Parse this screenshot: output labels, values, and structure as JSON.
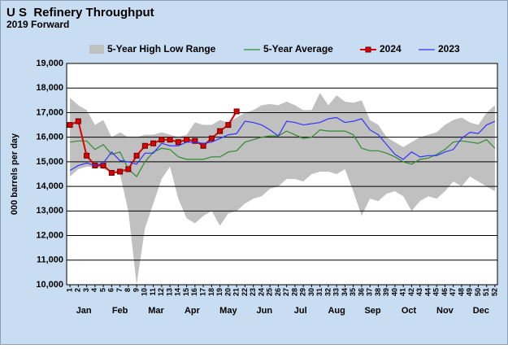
{
  "chart_data": {
    "type": "line",
    "title": "U S  Refinery Throughput",
    "subtitle": "2019 Forward",
    "y_label": "000 barrels per day",
    "x": [
      1,
      2,
      3,
      4,
      5,
      6,
      7,
      8,
      9,
      10,
      11,
      12,
      13,
      14,
      15,
      16,
      17,
      18,
      19,
      20,
      21,
      22,
      23,
      24,
      25,
      26,
      27,
      28,
      29,
      30,
      31,
      32,
      33,
      34,
      35,
      36,
      37,
      38,
      39,
      40,
      41,
      42,
      43,
      44,
      45,
      46,
      47,
      48,
      49,
      50,
      51,
      52
    ],
    "xlim": [
      0.6,
      52.3
    ],
    "xticks": [
      1,
      2,
      3,
      4,
      5,
      6,
      7,
      8,
      9,
      10,
      11,
      12,
      13,
      14,
      15,
      16,
      17,
      18,
      19,
      20,
      21,
      22,
      23,
      24,
      25,
      26,
      27,
      28,
      29,
      30,
      31,
      32,
      33,
      34,
      35,
      36,
      37,
      38,
      39,
      40,
      41,
      42,
      43,
      44,
      45,
      46,
      47,
      48,
      49,
      50,
      51,
      52
    ],
    "month_labels": [
      "Jan",
      "Feb",
      "Mar",
      "Apr",
      "May",
      "Jun",
      "Jul",
      "Aug",
      "Sep",
      "Oct",
      "Nov",
      "Dec"
    ],
    "ylim": [
      10000,
      19000
    ],
    "yticks": [
      {
        "value": 10000,
        "label": "10,000"
      },
      {
        "value": 11000,
        "label": "11,000"
      },
      {
        "value": 12000,
        "label": "12,000"
      },
      {
        "value": 13000,
        "label": "13,000"
      },
      {
        "value": 14000,
        "label": "14,000"
      },
      {
        "value": 15000,
        "label": "15,000"
      },
      {
        "value": 16000,
        "label": "16,000"
      },
      {
        "value": 17000,
        "label": "17,000"
      },
      {
        "value": 18000,
        "label": "18,000"
      },
      {
        "value": 19000,
        "label": "19,000"
      }
    ],
    "grid": true,
    "range": {
      "name": "5-Year High Low Range",
      "color": "#c0c0c0",
      "high": [
        17600,
        17300,
        17100,
        16500,
        16700,
        16000,
        16200,
        16000,
        16000,
        16100,
        16100,
        16200,
        16100,
        16000,
        16100,
        16600,
        16500,
        16500,
        16700,
        16600,
        16800,
        17000,
        17100,
        17300,
        17350,
        17300,
        17450,
        17300,
        17100,
        17100,
        17800,
        17300,
        17700,
        17450,
        17400,
        17500,
        16700,
        16500,
        16000,
        15800,
        15600,
        15800,
        16000,
        16100,
        16200,
        16500,
        16700,
        16800,
        16600,
        16500,
        17000,
        17300
      ],
      "low": [
        14400,
        14700,
        14800,
        14800,
        14700,
        14600,
        14500,
        13000,
        10000,
        12300,
        13300,
        14300,
        14800,
        13500,
        12700,
        12500,
        12800,
        13000,
        12400,
        12900,
        13000,
        13300,
        13500,
        13600,
        13900,
        14000,
        14300,
        14300,
        14200,
        14500,
        14600,
        14600,
        14500,
        14700,
        13800,
        12800,
        13500,
        13400,
        13700,
        13800,
        13600,
        13000,
        13400,
        13600,
        13500,
        13800,
        14200,
        14000,
        14400,
        14200,
        14000,
        13800
      ]
    },
    "series": [
      {
        "name": "5-Year Average",
        "color": "#2e8b2e",
        "markers": false,
        "values": [
          15800,
          15850,
          15850,
          15500,
          15700,
          15300,
          15400,
          14700,
          14400,
          15000,
          15400,
          15550,
          15500,
          15200,
          15100,
          15100,
          15100,
          15200,
          15200,
          15400,
          15450,
          15800,
          15900,
          16000,
          16050,
          16050,
          16250,
          16100,
          15950,
          16000,
          16300,
          16250,
          16250,
          16250,
          16100,
          15550,
          15450,
          15450,
          15350,
          15200,
          15000,
          14900,
          15100,
          15150,
          15300,
          15500,
          15800,
          15850,
          15800,
          15750,
          15900,
          15550
        ]
      },
      {
        "name": "2024",
        "color": "#dd0000",
        "markers": true,
        "values": [
          16500,
          16650,
          15250,
          14850,
          14850,
          14550,
          14600,
          14700,
          15250,
          15650,
          15750,
          15900,
          15900,
          15800,
          15900,
          15850,
          15650,
          15950,
          16250,
          16500,
          17050,
          null,
          null,
          null,
          null,
          null,
          null,
          null,
          null,
          null,
          null,
          null,
          null,
          null,
          null,
          null,
          null,
          null,
          null,
          null,
          null,
          null,
          null,
          null,
          null,
          null,
          null,
          null,
          null,
          null,
          null,
          null
        ]
      },
      {
        "name": "2023",
        "color": "#3333ff",
        "markers": false,
        "values": [
          14650,
          14850,
          14950,
          14850,
          14950,
          15400,
          15050,
          15000,
          14900,
          15350,
          15350,
          15750,
          15650,
          15650,
          15800,
          15800,
          15750,
          15800,
          15950,
          16100,
          16150,
          16650,
          16600,
          16500,
          16300,
          16050,
          16650,
          16600,
          16500,
          16550,
          16600,
          16750,
          16800,
          16600,
          16650,
          16750,
          16300,
          16100,
          15700,
          15300,
          15100,
          15400,
          15200,
          15250,
          15250,
          15400,
          15500,
          15950,
          16200,
          16150,
          16500,
          16650
        ]
      }
    ]
  }
}
